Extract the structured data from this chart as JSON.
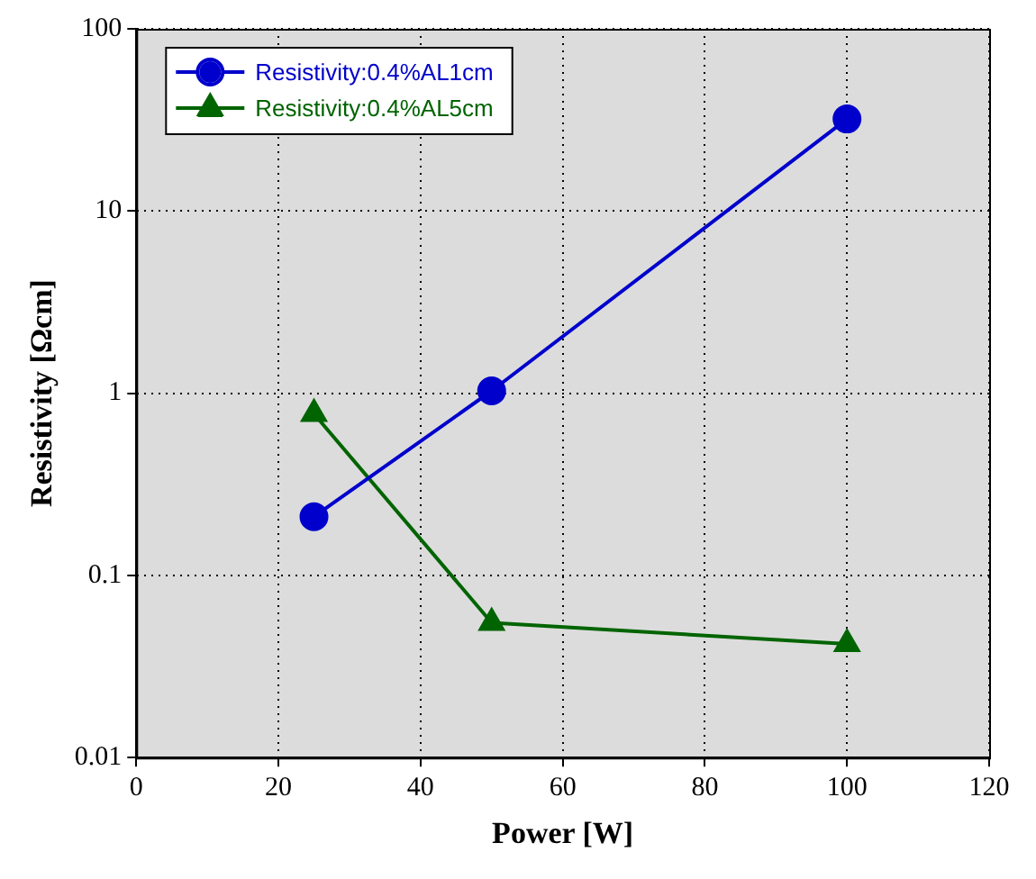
{
  "chart_data": {
    "type": "line",
    "xlabel": "Power [W]",
    "ylabel": "Resistivity [Ωcm]",
    "x": [
      25,
      50,
      100
    ],
    "series": [
      {
        "name": "Resistivity:0.4%AL1cm",
        "color": "#0000cc",
        "marker": "circle",
        "values": [
          0.21,
          1.03,
          32
        ]
      },
      {
        "name": "Resistivity:0.4%AL5cm",
        "color": "#006400",
        "marker": "triangle",
        "values": [
          0.77,
          0.055,
          0.042
        ]
      }
    ],
    "xlim": [
      0,
      120
    ],
    "xticks": [
      0,
      20,
      40,
      60,
      80,
      100,
      120
    ],
    "ylim": [
      0.01,
      100
    ],
    "yticks": [
      0.01,
      0.1,
      1,
      10,
      100
    ],
    "log": "y",
    "grid": true,
    "legend": "top left",
    "line_style": "solid"
  }
}
